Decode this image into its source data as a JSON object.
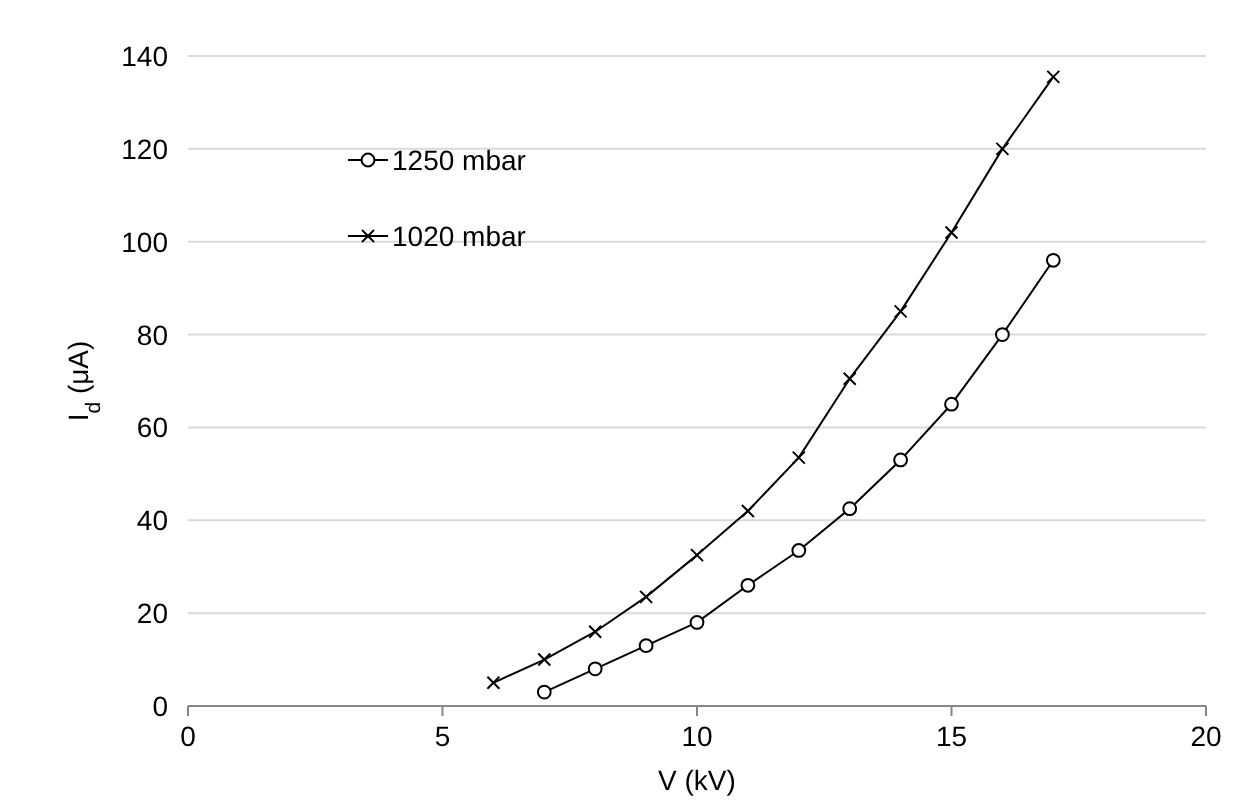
{
  "chart_data": {
    "type": "line",
    "xlabel": "V (kV)",
    "ylabel": "I$_{d}$ (μA)",
    "xlim": [
      0,
      20
    ],
    "xticks": [
      0,
      5,
      10,
      15,
      20
    ],
    "ylim": [
      0,
      140
    ],
    "yticks": [
      0,
      20,
      40,
      60,
      80,
      100,
      120,
      140
    ],
    "grid": "y",
    "legend": "top left",
    "series": [
      {
        "name": "1250 mbar",
        "color": "#000000",
        "marker": "circle",
        "x": [
          7,
          8,
          9,
          10,
          11,
          12,
          13,
          14,
          15,
          16,
          17
        ],
        "values": [
          3,
          8,
          13,
          18,
          26,
          33.5,
          42.5,
          53,
          65,
          80,
          96
        ]
      },
      {
        "name": "1020 mbar",
        "color": "#000000",
        "marker": "cross",
        "x": [
          6,
          7,
          8,
          9,
          10,
          11,
          12,
          13,
          14,
          15,
          16,
          17
        ],
        "values": [
          5,
          10,
          16,
          23.5,
          32.5,
          42,
          53.5,
          70.5,
          85,
          102,
          120,
          135.5
        ]
      }
    ]
  }
}
